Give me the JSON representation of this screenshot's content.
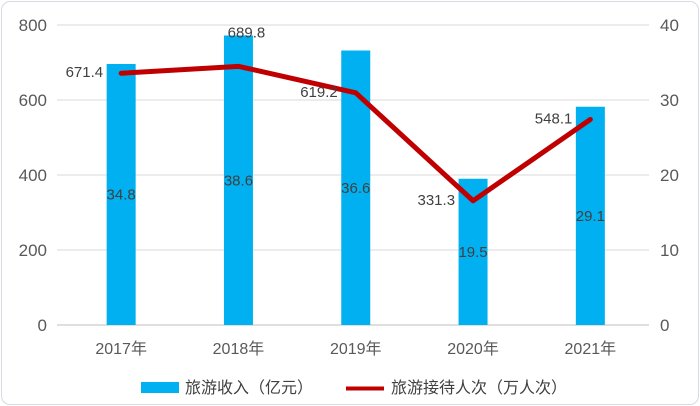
{
  "chart_data": {
    "type": "combo-bar-line",
    "categories": [
      "2017年",
      "2018年",
      "2019年",
      "2020年",
      "2021年"
    ],
    "series": [
      {
        "name": "旅游收入（亿元）",
        "type": "bar",
        "axis": "right",
        "color": "#00b0f0",
        "values": [
          34.8,
          38.6,
          36.6,
          19.5,
          29.1
        ],
        "labels": [
          "34.8",
          "38.6",
          "36.6",
          "19.5",
          "29.1"
        ]
      },
      {
        "name": "旅游接待人次（万人次）",
        "type": "line",
        "axis": "left",
        "color": "#c00000",
        "values": [
          671.4,
          689.8,
          619.2,
          331.3,
          548.1
        ],
        "labels": [
          "671.4",
          "689.8",
          "619.2",
          "331.3",
          "548.1"
        ],
        "label_positions": [
          "left",
          "above",
          "left",
          "left",
          "left"
        ]
      }
    ],
    "left_axis": {
      "min": 0,
      "max": 800,
      "ticks": [
        0,
        200,
        400,
        600,
        800
      ],
      "tick_labels": [
        "0",
        "200",
        "400",
        "600",
        "800"
      ]
    },
    "right_axis": {
      "min": 0,
      "max": 40,
      "ticks": [
        0,
        10,
        20,
        30,
        40
      ],
      "tick_labels": [
        "0",
        "10",
        "20",
        "30",
        "40"
      ]
    },
    "grid": true,
    "title": "",
    "legend_position": "bottom",
    "legend": [
      {
        "label": "旅游收入（亿元）",
        "swatch": "bar",
        "color": "#00b0f0"
      },
      {
        "label": "旅游接待人次（万人次）",
        "swatch": "line",
        "color": "#c00000"
      }
    ],
    "colors": {
      "gridline": "#d9d9d9",
      "axis_line": "#bfbfbf",
      "tick_text": "#595959",
      "data_label_text": "#404040"
    }
  }
}
